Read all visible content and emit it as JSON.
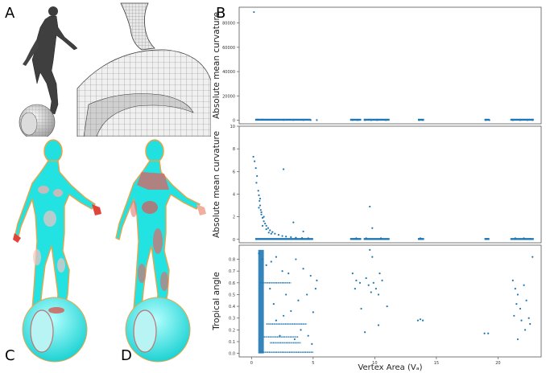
{
  "panels": {
    "a": "A",
    "b": "B",
    "c": "C",
    "d": "D"
  },
  "colors": {
    "points": "#1f77b4",
    "mesh_gray": "#4a4a4a",
    "cyan": "#19e3e3",
    "red": "#e0453a",
    "outline": "#e6a64a",
    "axes": "#555555"
  },
  "chart_data": [
    {
      "type": "scatter",
      "ylabel": "Absolute mean curvature",
      "xlabel": "",
      "xlim": [
        -1,
        23.5
      ],
      "ylim": [
        -3000,
        93000
      ],
      "yticks": [
        "0",
        "20000",
        "40000",
        "60000",
        "80000"
      ],
      "ytick_values": [
        0,
        20000,
        40000,
        60000,
        80000
      ],
      "xticks": [],
      "points": [
        [
          0.2,
          89000
        ],
        [
          0.5,
          500
        ],
        [
          0.7,
          350
        ],
        [
          0.9,
          400
        ],
        [
          1.3,
          300
        ],
        [
          1.8,
          200
        ],
        [
          2.6,
          150
        ],
        [
          3.4,
          120
        ],
        [
          4.2,
          100
        ],
        [
          4.8,
          100
        ],
        [
          5.3,
          80
        ],
        [
          8.2,
          90
        ],
        [
          8.6,
          70
        ],
        [
          9.2,
          80
        ],
        [
          9.7,
          60
        ],
        [
          10.2,
          70
        ],
        [
          10.9,
          80
        ],
        [
          13.6,
          70
        ],
        [
          13.9,
          60
        ],
        [
          19.0,
          60
        ],
        [
          19.3,
          50
        ],
        [
          21.2,
          70
        ],
        [
          21.8,
          60
        ],
        [
          22.4,
          50
        ],
        [
          22.8,
          60
        ]
      ],
      "segments": [
        [
          0.3,
          4.8
        ],
        [
          8.0,
          8.9
        ],
        [
          9.1,
          11.2
        ],
        [
          13.5,
          14.0
        ],
        [
          18.9,
          19.3
        ],
        [
          21.0,
          22.9
        ]
      ]
    },
    {
      "type": "scatter",
      "ylabel": "Absolute mean curvature",
      "xlabel": "",
      "xlim": [
        -1,
        23.5
      ],
      "ylim": [
        -0.3,
        10.0
      ],
      "yticks": [
        "0",
        "2",
        "4",
        "6",
        "8",
        "10"
      ],
      "ytick_values": [
        0,
        2,
        4,
        6,
        8,
        10
      ],
      "xticks": [],
      "points": [
        [
          0.15,
          7.3
        ],
        [
          0.25,
          6.9
        ],
        [
          0.35,
          6.3
        ],
        [
          0.45,
          5.6
        ],
        [
          0.4,
          5.0
        ],
        [
          0.55,
          4.3
        ],
        [
          0.6,
          3.9
        ],
        [
          0.65,
          3.4
        ],
        [
          0.7,
          3.0
        ],
        [
          0.75,
          2.6
        ],
        [
          0.8,
          2.2
        ],
        [
          0.9,
          1.9
        ],
        [
          1.0,
          1.6
        ],
        [
          1.1,
          1.4
        ],
        [
          1.2,
          1.2
        ],
        [
          1.35,
          1.0
        ],
        [
          1.5,
          0.8
        ],
        [
          1.7,
          0.65
        ],
        [
          1.9,
          0.5
        ],
        [
          2.2,
          0.4
        ],
        [
          2.5,
          0.3
        ],
        [
          2.8,
          0.25
        ],
        [
          3.2,
          0.2
        ],
        [
          3.6,
          0.15
        ],
        [
          4.1,
          0.12
        ],
        [
          4.6,
          0.1
        ],
        [
          2.6,
          6.2
        ],
        [
          3.4,
          1.5
        ],
        [
          4.2,
          0.7
        ],
        [
          0.6,
          2.8
        ],
        [
          0.7,
          3.6
        ],
        [
          0.8,
          2.4
        ],
        [
          0.9,
          1.2
        ],
        [
          1.0,
          2.0
        ],
        [
          1.2,
          0.9
        ],
        [
          1.4,
          0.6
        ],
        [
          1.6,
          0.5
        ],
        [
          9.6,
          2.9
        ],
        [
          9.8,
          1.0
        ],
        [
          8.5,
          0.1
        ],
        [
          9.3,
          0.1
        ],
        [
          10.5,
          0.1
        ],
        [
          13.7,
          0.1
        ],
        [
          19.1,
          0.05
        ],
        [
          21.4,
          0.1
        ],
        [
          22.1,
          0.1
        ],
        [
          22.6,
          0.05
        ]
      ],
      "segments": [
        [
          0.3,
          5.0
        ],
        [
          8.0,
          8.9
        ],
        [
          9.1,
          11.2
        ],
        [
          13.5,
          14.0
        ],
        [
          18.9,
          19.3
        ],
        [
          21.0,
          22.9
        ]
      ]
    },
    {
      "type": "scatter",
      "ylabel": "Tropical angle",
      "xlabel": "Vertex Area (Vₐ)",
      "xlim": [
        -1,
        23.5
      ],
      "ylim": [
        -0.03,
        0.92
      ],
      "yticks": [
        "0.0",
        "0.1",
        "0.2",
        "0.3",
        "0.4",
        "0.5",
        "0.6",
        "0.7",
        "0.8"
      ],
      "ytick_values": [
        0.0,
        0.1,
        0.2,
        0.3,
        0.4,
        0.5,
        0.6,
        0.7,
        0.8
      ],
      "xticks": [
        "0",
        "5",
        "10",
        "15",
        "20"
      ],
      "xtick_values": [
        0,
        5,
        10,
        15,
        20
      ],
      "points": [
        [
          0.6,
          0.85
        ],
        [
          0.9,
          0.8
        ],
        [
          1.2,
          0.75
        ],
        [
          1.6,
          0.78
        ],
        [
          2.0,
          0.82
        ],
        [
          2.5,
          0.7
        ],
        [
          3.0,
          0.68
        ],
        [
          3.6,
          0.8
        ],
        [
          4.2,
          0.72
        ],
        [
          4.8,
          0.66
        ],
        [
          5.2,
          0.55
        ],
        [
          4.5,
          0.5
        ],
        [
          3.8,
          0.45
        ],
        [
          3.2,
          0.36
        ],
        [
          2.6,
          0.32
        ],
        [
          2.0,
          0.28
        ],
        [
          4.0,
          0.2
        ],
        [
          4.6,
          0.15
        ],
        [
          3.5,
          0.12
        ],
        [
          2.8,
          0.5
        ],
        [
          1.5,
          0.55
        ],
        [
          1.8,
          0.42
        ],
        [
          2.3,
          0.15
        ],
        [
          5.0,
          0.35
        ],
        [
          5.3,
          0.62
        ],
        [
          4.9,
          0.08
        ],
        [
          8.2,
          0.68
        ],
        [
          8.5,
          0.62
        ],
        [
          8.8,
          0.6
        ],
        [
          8.4,
          0.55
        ],
        [
          9.3,
          0.64
        ],
        [
          9.5,
          0.58
        ],
        [
          9.7,
          0.52
        ],
        [
          9.9,
          0.6
        ],
        [
          10.1,
          0.55
        ],
        [
          10.3,
          0.5
        ],
        [
          9.6,
          0.88
        ],
        [
          9.8,
          0.82
        ],
        [
          10.4,
          0.68
        ],
        [
          9.2,
          0.18
        ],
        [
          10.3,
          0.24
        ],
        [
          11.0,
          0.4
        ],
        [
          8.9,
          0.38
        ],
        [
          10.6,
          0.62
        ],
        [
          13.5,
          0.28
        ],
        [
          13.7,
          0.29
        ],
        [
          13.9,
          0.28
        ],
        [
          18.9,
          0.17
        ],
        [
          19.2,
          0.17
        ],
        [
          21.2,
          0.62
        ],
        [
          21.4,
          0.55
        ],
        [
          21.6,
          0.5
        ],
        [
          21.5,
          0.42
        ],
        [
          21.8,
          0.38
        ],
        [
          21.3,
          0.32
        ],
        [
          21.9,
          0.28
        ],
        [
          22.1,
          0.58
        ],
        [
          22.3,
          0.45
        ],
        [
          22.5,
          0.3
        ],
        [
          22.6,
          0.25
        ],
        [
          22.8,
          0.82
        ],
        [
          21.6,
          0.12
        ],
        [
          22.2,
          0.2
        ]
      ],
      "bands": [
        [
          0.7,
          5.0,
          0.01
        ],
        [
          1.2,
          4.5,
          0.25
        ],
        [
          0.7,
          3.2,
          0.6
        ],
        [
          1.5,
          4.0,
          0.09
        ],
        [
          1.0,
          3.8,
          0.14
        ]
      ]
    }
  ]
}
